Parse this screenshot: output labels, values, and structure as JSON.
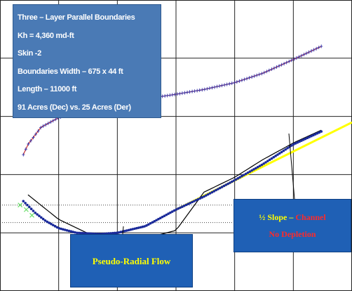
{
  "info_box": {
    "lines": [
      "Three – Layer Parallel Boundaries",
      "Kh = 4,360 md-ft",
      "Skin -2",
      "Boundaries Width – 675 x 44 ft",
      "Length – 11000 ft",
      "91 Acres (Dec) vs. 25 Acres (Der)"
    ]
  },
  "callouts": {
    "radial": "Pseudo-Radial Flow",
    "half_slope_prefix": "½ Slope – ",
    "half_slope_channel": "Channel",
    "half_slope_line2": "No Depletion"
  },
  "colors": {
    "background_box": "#4a7ab5",
    "callout_box": "#1f60b5",
    "callout_text": "#ffff00",
    "callout_red": "#ff2a2a",
    "pressure_match": "#cc3333",
    "pressure_points": "#3333aa",
    "derivative_points": "#1a2a9a",
    "derivative_match": "#000000",
    "half_slope_line": "#ffff00",
    "early_markers": "#66dd66"
  },
  "chart_data": {
    "type": "scatter",
    "title": "",
    "xlabel": "",
    "ylabel": "",
    "x_scale": "log",
    "y_scale": "log",
    "xlim": [
      0.001,
      1000
    ],
    "ylim": [
      0.01,
      1000
    ],
    "grid": true,
    "series": [
      {
        "role": "pressure_data",
        "x": [
          0.0025,
          0.003,
          0.005,
          0.01,
          0.03,
          0.1,
          0.3,
          1,
          3,
          10,
          30,
          100,
          300
        ],
        "y": [
          2.2,
          3.3,
          6.5,
          9.5,
          13.5,
          16.5,
          20,
          24,
          29,
          38,
          55,
          95,
          160
        ]
      },
      {
        "role": "derivative_data",
        "x": [
          0.0025,
          0.004,
          0.006,
          0.01,
          0.02,
          0.05,
          0.1,
          0.3,
          1,
          3,
          10,
          30,
          100,
          300
        ],
        "y": [
          0.35,
          0.22,
          0.16,
          0.12,
          0.1,
          0.095,
          0.1,
          0.13,
          0.25,
          0.42,
          0.8,
          1.5,
          3.3,
          5.5
        ]
      },
      {
        "role": "derivative_model",
        "x": [
          0.003,
          0.01,
          0.03,
          0.1,
          0.3,
          1,
          3,
          10,
          30,
          100,
          300
        ],
        "y": [
          0.45,
          0.17,
          0.1,
          0.095,
          0.08,
          0.11,
          0.5,
          0.9,
          1.8,
          3.5,
          5.8
        ]
      },
      {
        "role": "half_slope_line",
        "x": [
          1,
          10,
          100,
          1000
        ],
        "y": [
          0.25,
          0.79,
          2.5,
          7.9
        ]
      }
    ],
    "annotations": [
      "Pseudo-Radial Flow",
      "½ Slope – Channel",
      "No Depletion"
    ]
  }
}
